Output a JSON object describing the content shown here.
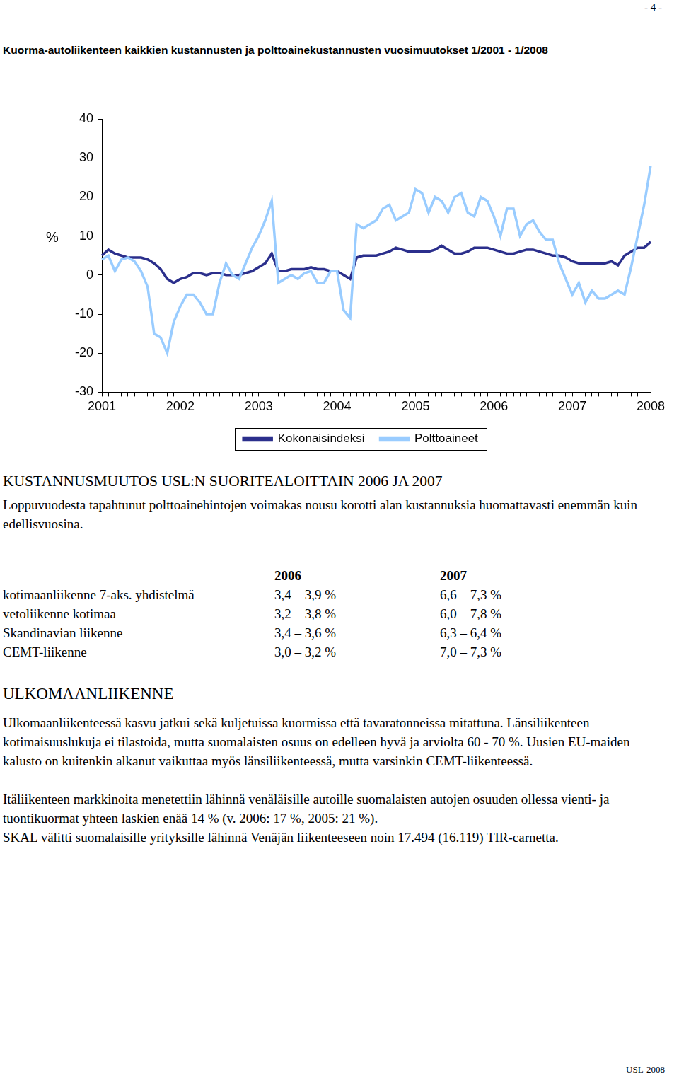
{
  "page_number": "- 4 -",
  "chart_data": {
    "type": "line",
    "title": "Kuorma-autoliikenteen kaikkien kustannusten ja polttoainekustannusten vuosimuutokset 1/2001 - 1/2008",
    "y_label": "%",
    "categories": [
      "2001",
      null,
      null,
      null,
      null,
      null,
      null,
      null,
      null,
      null,
      null,
      null,
      "2002",
      null,
      null,
      null,
      null,
      null,
      null,
      null,
      null,
      null,
      null,
      null,
      "2003",
      null,
      null,
      null,
      null,
      null,
      null,
      null,
      null,
      null,
      null,
      null,
      "2004",
      null,
      null,
      null,
      null,
      null,
      null,
      null,
      null,
      null,
      null,
      null,
      "2005",
      null,
      null,
      null,
      null,
      null,
      null,
      null,
      null,
      null,
      null,
      null,
      "2006",
      null,
      null,
      null,
      null,
      null,
      null,
      null,
      null,
      null,
      null,
      null,
      "2007",
      null,
      null,
      null,
      null,
      null,
      null,
      null,
      null,
      null,
      null,
      null,
      "2008"
    ],
    "series": [
      {
        "name": "Kokonaisindeksi",
        "color": "#2b2f8c",
        "values": [
          5,
          6.5,
          5.5,
          5,
          4.5,
          4.5,
          4.5,
          4,
          3,
          1.5,
          -1,
          -2,
          -1,
          -0.5,
          0.5,
          0.5,
          0,
          0.5,
          0.5,
          0,
          0,
          0,
          0.5,
          1,
          2,
          3,
          5.5,
          1,
          1,
          1.5,
          1.5,
          1.5,
          2,
          1.5,
          1.5,
          1,
          1,
          0,
          -1,
          4.5,
          5,
          5,
          5,
          5.5,
          6,
          7,
          6.5,
          6,
          6,
          6,
          6,
          6.5,
          7.5,
          6.5,
          5.5,
          5.5,
          6,
          7,
          7,
          7,
          6.5,
          6,
          5.5,
          5.5,
          6,
          6.5,
          6.5,
          6,
          5.5,
          5,
          5,
          4.5,
          3.5,
          3,
          3,
          3,
          3,
          3,
          3.5,
          2.5,
          5,
          6,
          7,
          7,
          8.5
        ]
      },
      {
        "name": "Polttoaineet",
        "color": "#99ccff",
        "values": [
          4,
          5,
          1,
          4,
          4.5,
          3.5,
          1,
          -3,
          -15,
          -16,
          -20,
          -12,
          -8,
          -5,
          -5,
          -7,
          -10,
          -10,
          -2,
          3,
          0,
          -1,
          3,
          7,
          10,
          14,
          19,
          -2,
          -1,
          0,
          -1,
          0.5,
          1,
          -2,
          -2,
          1,
          1,
          -9,
          -11,
          13,
          12,
          13,
          14,
          17,
          18,
          14,
          15,
          16,
          22,
          21,
          16,
          20,
          19,
          16,
          20,
          21,
          16,
          15,
          20,
          19,
          15,
          10,
          17,
          17,
          10,
          13,
          14,
          11,
          9,
          9,
          3,
          -1,
          -5,
          -2,
          -7,
          -4,
          -6,
          -6,
          -5,
          -4,
          -5,
          2,
          10,
          18,
          28
        ]
      }
    ],
    "ylim": [
      -30,
      40
    ],
    "yticks": [
      -30,
      -20,
      -10,
      0,
      10,
      20,
      30,
      40
    ],
    "grid": false,
    "legend": "bottom"
  },
  "section": {
    "heading": "KUSTANNUSMUUTOS USL:N SUORITEALOITTAIN 2006 JA 2007",
    "intro": "Loppuvuodesta tapahtunut polttoainehintojen voimakas nousu korotti alan kustannuksia huomattavasti enemmän kuin edellisvuosina.",
    "table": {
      "header": [
        "",
        "2006",
        "2007"
      ],
      "rows": [
        [
          "kotimaanliikenne 7-aks. yhdistelmä",
          "3,4 – 3,9 %",
          "6,6 – 7,3 %"
        ],
        [
          "vetoliikenne kotimaa",
          "3,2 – 3,8 %",
          "6,0 – 7,8 %"
        ],
        [
          "Skandinavian liikenne",
          "3,4 – 3,6 %",
          "6,3 – 6,4 %"
        ],
        [
          "CEMT-liikenne",
          "3,0 – 3,2 %",
          "7,0 – 7,3 %"
        ]
      ]
    }
  },
  "foreign": {
    "heading": "ULKOMAANLIIKENNE",
    "paragraphs": [
      "Ulkomaanliikenteessä kasvu jatkui sekä kuljetuissa kuormissa että tavaratonneissa mitattuna. Länsiliikenteen kotimaisuuslukuja ei tilastoida, mutta suomalaisten osuus on edelleen hyvä ja arviolta 60 - 70 %. Uusien EU-maiden kalusto on kuitenkin alkanut vaikuttaa myös länsiliikenteessä, mutta varsinkin CEMT-liikenteessä.",
      "Itäliikenteen markkinoita menetettiin lähinnä venäläisille autoille suomalaisten autojen osuuden ollessa vienti- ja tuontikuormat yhteen laskien enää 14 % (v. 2006: 17 %, 2005: 21 %).",
      "SKAL välitti suomalaisille yrityksille lähinnä Venäjän liikenteeseen noin 17.494 (16.119) TIR-carnetta."
    ]
  },
  "footer": "USL-2008"
}
